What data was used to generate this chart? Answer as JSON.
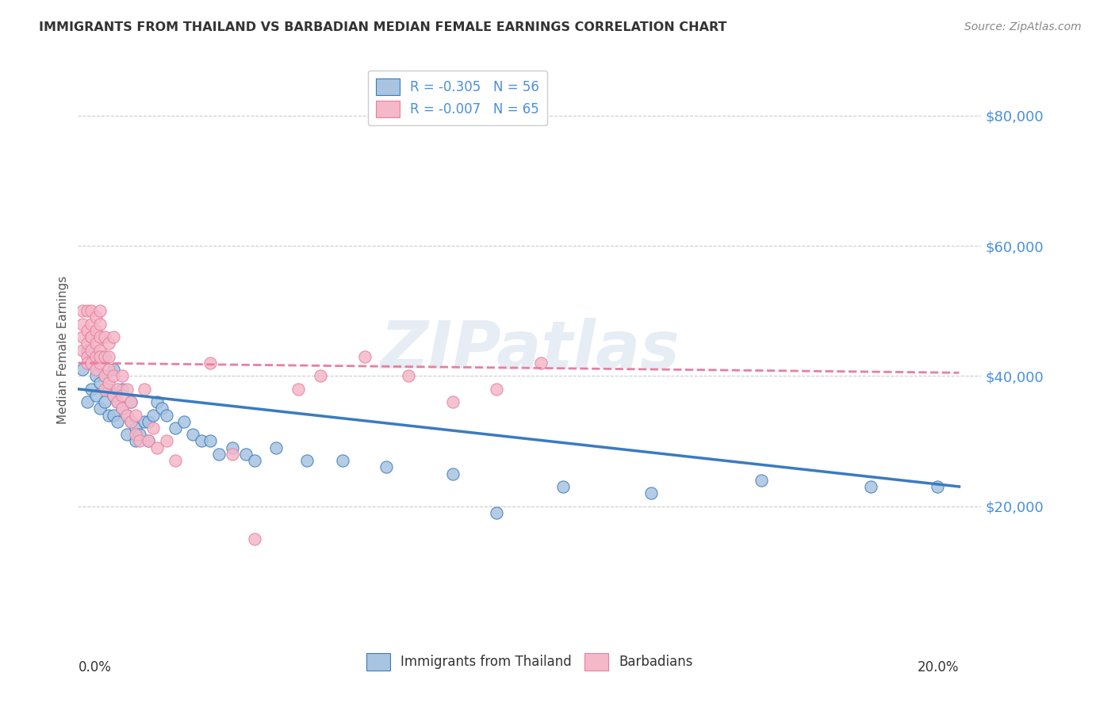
{
  "title": "IMMIGRANTS FROM THAILAND VS BARBADIAN MEDIAN FEMALE EARNINGS CORRELATION CHART",
  "source": "Source: ZipAtlas.com",
  "ylabel": "Median Female Earnings",
  "yticks": [
    20000,
    40000,
    60000,
    80000
  ],
  "ytick_labels": [
    "$20,000",
    "$40,000",
    "$60,000",
    "$80,000"
  ],
  "ylim": [
    0,
    88000
  ],
  "xlim": [
    0.0,
    0.205
  ],
  "legend_entries": [
    {
      "label": "R = -0.305   N = 56",
      "color": "#a8c4e0"
    },
    {
      "label": "R = -0.007   N = 65",
      "color": "#f4b8c8"
    }
  ],
  "legend_bottom": [
    {
      "label": "Immigrants from Thailand",
      "color": "#a8c4e0"
    },
    {
      "label": "Barbadians",
      "color": "#f4b8c8"
    }
  ],
  "blue_scatter": {
    "x": [
      0.001,
      0.002,
      0.002,
      0.003,
      0.003,
      0.004,
      0.004,
      0.005,
      0.005,
      0.005,
      0.006,
      0.006,
      0.006,
      0.007,
      0.007,
      0.008,
      0.008,
      0.008,
      0.009,
      0.009,
      0.01,
      0.01,
      0.011,
      0.011,
      0.012,
      0.012,
      0.013,
      0.013,
      0.014,
      0.015,
      0.016,
      0.016,
      0.017,
      0.018,
      0.019,
      0.02,
      0.022,
      0.024,
      0.026,
      0.028,
      0.03,
      0.032,
      0.035,
      0.038,
      0.04,
      0.045,
      0.052,
      0.06,
      0.07,
      0.085,
      0.095,
      0.11,
      0.13,
      0.155,
      0.18,
      0.195
    ],
    "y": [
      41000,
      44000,
      36000,
      38000,
      42000,
      37000,
      40000,
      35000,
      39000,
      43000,
      36000,
      40000,
      43000,
      34000,
      38000,
      34000,
      37000,
      41000,
      33000,
      36000,
      35000,
      38000,
      31000,
      34000,
      33000,
      36000,
      30000,
      32000,
      31000,
      33000,
      30000,
      33000,
      34000,
      36000,
      35000,
      34000,
      32000,
      33000,
      31000,
      30000,
      30000,
      28000,
      29000,
      28000,
      27000,
      29000,
      27000,
      27000,
      26000,
      25000,
      19000,
      23000,
      22000,
      24000,
      23000,
      23000
    ]
  },
  "pink_scatter": {
    "x": [
      0.001,
      0.001,
      0.001,
      0.001,
      0.002,
      0.002,
      0.002,
      0.002,
      0.002,
      0.003,
      0.003,
      0.003,
      0.003,
      0.003,
      0.003,
      0.004,
      0.004,
      0.004,
      0.004,
      0.004,
      0.005,
      0.005,
      0.005,
      0.005,
      0.005,
      0.005,
      0.006,
      0.006,
      0.006,
      0.006,
      0.007,
      0.007,
      0.007,
      0.007,
      0.008,
      0.008,
      0.008,
      0.009,
      0.009,
      0.01,
      0.01,
      0.01,
      0.011,
      0.011,
      0.012,
      0.012,
      0.013,
      0.013,
      0.014,
      0.015,
      0.016,
      0.017,
      0.018,
      0.02,
      0.022,
      0.03,
      0.035,
      0.04,
      0.05,
      0.055,
      0.065,
      0.075,
      0.085,
      0.095,
      0.105
    ],
    "y": [
      46000,
      48000,
      50000,
      44000,
      45000,
      47000,
      43000,
      50000,
      42000,
      44000,
      46000,
      48000,
      50000,
      42000,
      46000,
      43000,
      45000,
      47000,
      41000,
      49000,
      42000,
      44000,
      46000,
      43000,
      48000,
      50000,
      38000,
      40000,
      43000,
      46000,
      39000,
      41000,
      43000,
      45000,
      37000,
      40000,
      46000,
      36000,
      38000,
      35000,
      37000,
      40000,
      34000,
      38000,
      33000,
      36000,
      31000,
      34000,
      30000,
      38000,
      30000,
      32000,
      29000,
      30000,
      27000,
      42000,
      28000,
      15000,
      38000,
      40000,
      43000,
      40000,
      36000,
      38000,
      42000
    ]
  },
  "blue_line": {
    "x0": 0.0,
    "y0": 38000,
    "x1": 0.2,
    "y1": 23000
  },
  "pink_line": {
    "x0": 0.0,
    "y0": 42000,
    "x1": 0.2,
    "y1": 40500
  },
  "blue_line_color": "#3a7bbf",
  "pink_line_color": "#e87fa0",
  "scatter_blue_color": "#a8c4e0",
  "scatter_pink_color": "#f4b8c8",
  "background_color": "#ffffff",
  "grid_color": "#cccccc",
  "title_color": "#333333",
  "axis_label_color": "#555555",
  "tick_label_color": "#4a90d9",
  "watermark": "ZIPatlas"
}
